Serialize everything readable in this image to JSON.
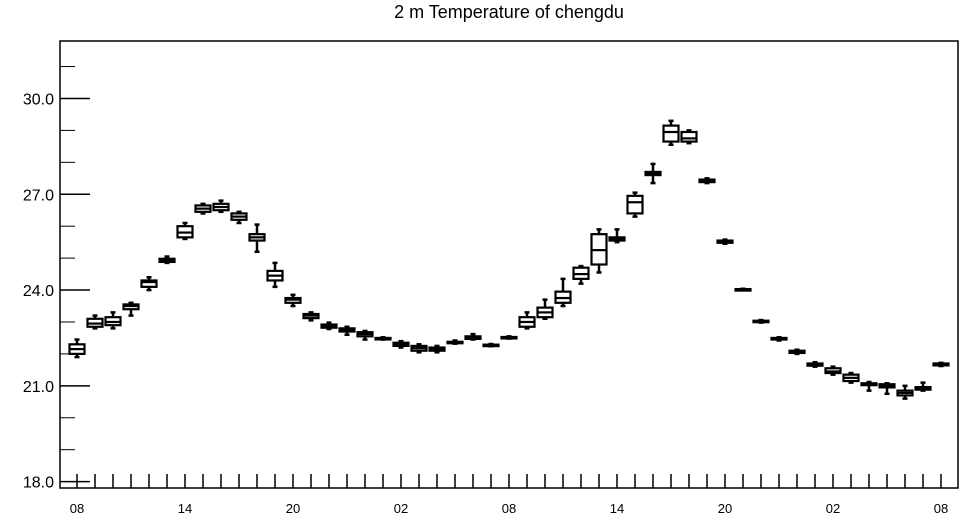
{
  "chart_data": {
    "type": "box",
    "title": "2 m Temperature of chengdu",
    "xlabel": "",
    "ylabel": "",
    "ylim": [
      17.8,
      31.8
    ],
    "y_ticks": [
      18.0,
      21.0,
      24.0,
      27.0,
      30.0
    ],
    "y_tick_labels": [
      "18.0",
      "21.0",
      "24.0",
      "27.0",
      "30.0"
    ],
    "x_tick_labels": [
      {
        "index": 0,
        "label": "08"
      },
      {
        "index": 6,
        "label": "14"
      },
      {
        "index": 12,
        "label": "20"
      },
      {
        "index": 18,
        "label": "02"
      },
      {
        "index": 24,
        "label": "08"
      },
      {
        "index": 30,
        "label": "14"
      },
      {
        "index": 36,
        "label": "20"
      },
      {
        "index": 42,
        "label": "02"
      },
      {
        "index": 48,
        "label": "08"
      }
    ],
    "x_count": 49,
    "boxes": [
      {
        "min": 21.9,
        "q1": 22.0,
        "median": 22.15,
        "q3": 22.3,
        "max": 22.45
      },
      {
        "min": 22.8,
        "q1": 22.85,
        "median": 22.95,
        "q3": 23.1,
        "max": 23.2
      },
      {
        "min": 22.8,
        "q1": 22.9,
        "median": 23.0,
        "q3": 23.15,
        "max": 23.3
      },
      {
        "min": 23.2,
        "q1": 23.4,
        "median": 23.5,
        "q3": 23.55,
        "max": 23.6
      },
      {
        "min": 24.0,
        "q1": 24.1,
        "median": 24.25,
        "q3": 24.3,
        "max": 24.4
      },
      {
        "min": 24.85,
        "q1": 24.88,
        "median": 24.92,
        "q3": 24.98,
        "max": 25.05
      },
      {
        "min": 25.6,
        "q1": 25.65,
        "median": 25.8,
        "q3": 26.0,
        "max": 26.1
      },
      {
        "min": 26.4,
        "q1": 26.45,
        "median": 26.55,
        "q3": 26.65,
        "max": 26.7
      },
      {
        "min": 26.45,
        "q1": 26.5,
        "median": 26.6,
        "q3": 26.7,
        "max": 26.8
      },
      {
        "min": 26.1,
        "q1": 26.2,
        "median": 26.3,
        "q3": 26.4,
        "max": 26.45
      },
      {
        "min": 25.2,
        "q1": 25.55,
        "median": 25.65,
        "q3": 25.75,
        "max": 26.05
      },
      {
        "min": 24.1,
        "q1": 24.3,
        "median": 24.45,
        "q3": 24.6,
        "max": 24.85
      },
      {
        "min": 23.5,
        "q1": 23.6,
        "median": 23.7,
        "q3": 23.75,
        "max": 23.85
      },
      {
        "min": 23.05,
        "q1": 23.12,
        "median": 23.2,
        "q3": 23.25,
        "max": 23.3
      },
      {
        "min": 22.78,
        "q1": 22.82,
        "median": 22.87,
        "q3": 22.92,
        "max": 22.98
      },
      {
        "min": 22.6,
        "q1": 22.7,
        "median": 22.75,
        "q3": 22.8,
        "max": 22.85
      },
      {
        "min": 22.45,
        "q1": 22.55,
        "median": 22.62,
        "q3": 22.68,
        "max": 22.72
      },
      {
        "min": 22.45,
        "q1": 22.46,
        "median": 22.48,
        "q3": 22.5,
        "max": 22.52
      },
      {
        "min": 22.2,
        "q1": 22.25,
        "median": 22.3,
        "q3": 22.35,
        "max": 22.4
      },
      {
        "min": 22.05,
        "q1": 22.1,
        "median": 22.18,
        "q3": 22.25,
        "max": 22.3
      },
      {
        "min": 22.05,
        "q1": 22.1,
        "median": 22.15,
        "q3": 22.2,
        "max": 22.25
      },
      {
        "min": 22.32,
        "q1": 22.34,
        "median": 22.36,
        "q3": 22.38,
        "max": 22.42
      },
      {
        "min": 22.45,
        "q1": 22.47,
        "median": 22.52,
        "q3": 22.55,
        "max": 22.62
      },
      {
        "min": 22.24,
        "q1": 22.25,
        "median": 22.27,
        "q3": 22.29,
        "max": 22.31
      },
      {
        "min": 22.48,
        "q1": 22.49,
        "median": 22.51,
        "q3": 22.53,
        "max": 22.55
      },
      {
        "min": 22.8,
        "q1": 22.85,
        "median": 23.0,
        "q3": 23.15,
        "max": 23.3
      },
      {
        "min": 23.1,
        "q1": 23.15,
        "median": 23.3,
        "q3": 23.45,
        "max": 23.7
      },
      {
        "min": 23.5,
        "q1": 23.6,
        "median": 23.75,
        "q3": 23.95,
        "max": 24.35
      },
      {
        "min": 24.2,
        "q1": 24.35,
        "median": 24.5,
        "q3": 24.7,
        "max": 24.75
      },
      {
        "min": 24.55,
        "q1": 24.8,
        "median": 25.25,
        "q3": 25.75,
        "max": 25.9
      },
      {
        "min": 25.5,
        "q1": 25.55,
        "median": 25.6,
        "q3": 25.65,
        "max": 25.9
      },
      {
        "min": 26.3,
        "q1": 26.4,
        "median": 26.75,
        "q3": 26.95,
        "max": 27.05
      },
      {
        "min": 27.35,
        "q1": 27.6,
        "median": 27.65,
        "q3": 27.7,
        "max": 27.95
      },
      {
        "min": 28.55,
        "q1": 28.65,
        "median": 28.95,
        "q3": 29.15,
        "max": 29.3
      },
      {
        "min": 28.6,
        "q1": 28.65,
        "median": 28.75,
        "q3": 28.95,
        "max": 29.0
      },
      {
        "min": 27.35,
        "q1": 27.38,
        "median": 27.42,
        "q3": 27.46,
        "max": 27.5
      },
      {
        "min": 25.45,
        "q1": 25.48,
        "median": 25.52,
        "q3": 25.55,
        "max": 25.58
      },
      {
        "min": 24.0,
        "q1": 24.01,
        "median": 24.02,
        "q3": 24.03,
        "max": 24.04
      },
      {
        "min": 22.98,
        "q1": 23.0,
        "median": 23.02,
        "q3": 23.04,
        "max": 23.06
      },
      {
        "min": 22.42,
        "q1": 22.45,
        "median": 22.48,
        "q3": 22.5,
        "max": 22.52
      },
      {
        "min": 22.0,
        "q1": 22.03,
        "median": 22.07,
        "q3": 22.1,
        "max": 22.13
      },
      {
        "min": 21.6,
        "q1": 21.63,
        "median": 21.66,
        "q3": 21.7,
        "max": 21.74
      },
      {
        "min": 21.35,
        "q1": 21.4,
        "median": 21.45,
        "q3": 21.55,
        "max": 21.6
      },
      {
        "min": 21.1,
        "q1": 21.15,
        "median": 21.25,
        "q3": 21.35,
        "max": 21.4
      },
      {
        "min": 20.85,
        "q1": 21.02,
        "median": 21.05,
        "q3": 21.08,
        "max": 21.12
      },
      {
        "min": 20.75,
        "q1": 20.95,
        "median": 21.0,
        "q3": 21.05,
        "max": 21.08
      },
      {
        "min": 20.6,
        "q1": 20.7,
        "median": 20.78,
        "q3": 20.85,
        "max": 21.0
      },
      {
        "min": 20.85,
        "q1": 20.88,
        "median": 20.92,
        "q3": 20.96,
        "max": 21.1
      },
      {
        "min": 21.62,
        "q1": 21.64,
        "median": 21.67,
        "q3": 21.7,
        "max": 21.72
      }
    ],
    "grid": false,
    "legend": "none",
    "colors": {
      "line": "#000000",
      "background": "#ffffff"
    }
  }
}
